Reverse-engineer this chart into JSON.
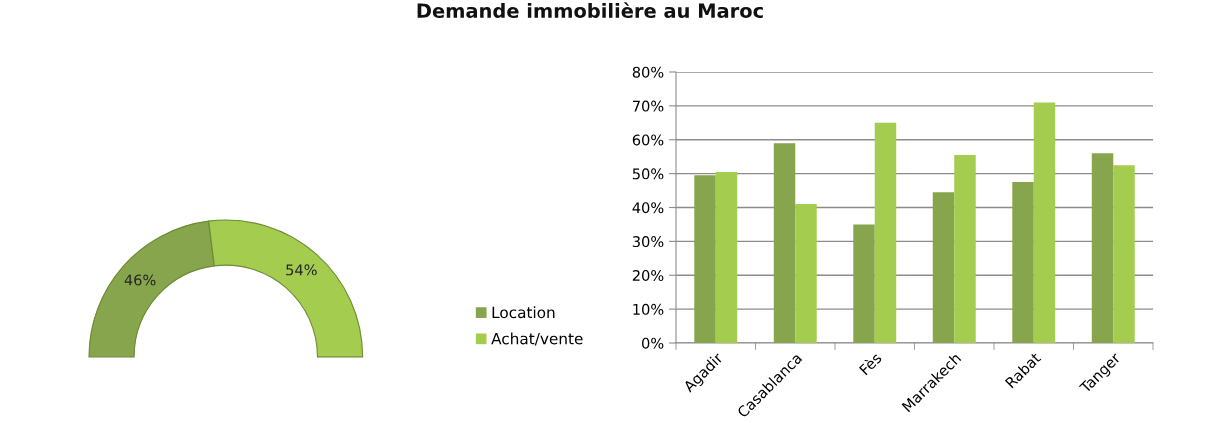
{
  "chart_data": [
    {
      "type": "donut",
      "categories": [
        "Location",
        "Achat/vente"
      ],
      "values": [
        46,
        54
      ],
      "colors": [
        "#87a54c",
        "#a4cc4e"
      ],
      "value_labels": [
        "46%",
        "54%"
      ],
      "legend": "right"
    },
    {
      "type": "bar",
      "title": "Demande immobilière au Maroc",
      "categories": [
        "Agadir",
        "Casablanca",
        "Fès",
        "Marrakech",
        "Rabat",
        "Tanger"
      ],
      "series": [
        {
          "name": "Location",
          "color": "#87a54c",
          "values": [
            49.5,
            59,
            35,
            44.5,
            47.5,
            56
          ]
        },
        {
          "name": "Achat/vente",
          "color": "#a4cc4e",
          "values": [
            50.5,
            41,
            65,
            55.5,
            71,
            52.5
          ]
        }
      ],
      "ylim": [
        0,
        80
      ],
      "yticks": [
        {
          "value": 0,
          "label": "0%"
        },
        {
          "value": 10,
          "label": "10%"
        },
        {
          "value": 20,
          "label": "20%"
        },
        {
          "value": 30,
          "label": "30%"
        },
        {
          "value": 40,
          "label": "40%"
        },
        {
          "value": 50,
          "label": "50%"
        },
        {
          "value": 60,
          "label": "60%"
        },
        {
          "value": 70,
          "label": "70%"
        },
        {
          "value": 80,
          "label": "80%"
        }
      ],
      "grid": "y",
      "legend": "left"
    }
  ]
}
